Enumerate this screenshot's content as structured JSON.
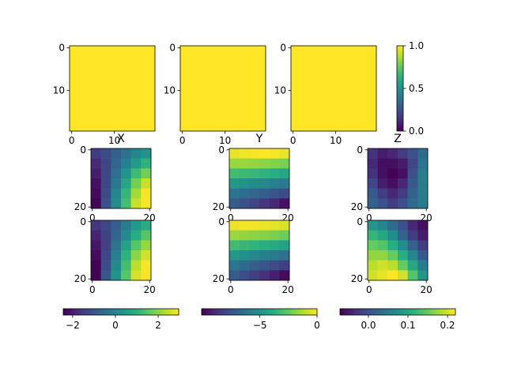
{
  "chart_data": [
    {
      "type": "heatmap",
      "values": [
        [
          1
        ]
      ],
      "clim": [
        0,
        1
      ],
      "xlim": [
        -0.5,
        19.5
      ],
      "ylim": [
        19.5,
        -0.5
      ],
      "xticks": [
        0,
        10
      ],
      "yticks": [
        0,
        10
      ]
    },
    {
      "type": "heatmap",
      "values": [
        [
          1
        ]
      ],
      "clim": [
        0,
        1
      ],
      "xlim": [
        -0.5,
        19.5
      ],
      "ylim": [
        19.5,
        -0.5
      ],
      "xticks": [
        0,
        10
      ],
      "yticks": [
        0,
        10
      ]
    },
    {
      "type": "heatmap",
      "values": [
        [
          1
        ]
      ],
      "clim": [
        0,
        1
      ],
      "xlim": [
        -0.5,
        19.5
      ],
      "ylim": [
        19.5,
        -0.5
      ],
      "xticks": [
        0,
        10
      ],
      "yticks": [
        0,
        10
      ]
    },
    {
      "type": "heatmap",
      "title": "X",
      "clim": [
        -2.44,
        2.96
      ],
      "xlim": [
        -0.5,
        20.5
      ],
      "ylim": [
        20.5,
        -0.5
      ],
      "xticks": [
        0,
        20
      ],
      "yticks": [
        0,
        20
      ],
      "values": [
        [
          -1.5,
          -1.2,
          -0.8,
          -0.4,
          0,
          0.3
        ],
        [
          -1.8,
          -1.3,
          -0.7,
          -0.1,
          0.5,
          1.0
        ],
        [
          -2,
          -1.3,
          -0.5,
          0.3,
          1.2,
          1.8
        ],
        [
          -2.2,
          -1.3,
          -0.3,
          0.7,
          1.8,
          2.5
        ],
        [
          -2.3,
          -1.2,
          0,
          1.1,
          2.2,
          2.9
        ],
        [
          -2.4,
          -1.1,
          0.1,
          1.3,
          2.5,
          2.9
        ]
      ]
    },
    {
      "type": "heatmap",
      "title": "Y",
      "clim": [
        -10.1,
        0
      ],
      "xlim": [
        -0.5,
        20.5
      ],
      "ylim": [
        20.5,
        -0.5
      ],
      "xticks": [
        0,
        20
      ],
      "yticks": [
        0,
        20
      ],
      "values": [
        [
          -0.3,
          -0.2,
          -0.1,
          0,
          -0.1,
          -0.3
        ],
        [
          -1.6,
          -1.6,
          -1.7,
          -1.8,
          -1.9,
          -2.1
        ],
        [
          -3.2,
          -3.3,
          -3.4,
          -3.6,
          -3.8,
          -4.1
        ],
        [
          -4.8,
          -5,
          -5.2,
          -5.4,
          -5.7,
          -6
        ],
        [
          -6.2,
          -6.5,
          -6.8,
          -7.1,
          -7.4,
          -7.8
        ],
        [
          -7.2,
          -7.6,
          -8,
          -8.5,
          -9,
          -9.6
        ]
      ]
    },
    {
      "type": "heatmap",
      "title": "Z",
      "clim": [
        -0.072,
        0.22
      ],
      "xlim": [
        -0.5,
        20.5
      ],
      "ylim": [
        20.5,
        -0.5
      ],
      "xticks": [
        0,
        20
      ],
      "yticks": [
        0,
        20
      ],
      "values": [
        [
          -0.03,
          -0.05,
          -0.04,
          -0.02,
          0,
          0.03
        ],
        [
          -0.04,
          -0.06,
          -0.06,
          -0.05,
          -0.01,
          0.04
        ],
        [
          -0.03,
          -0.06,
          -0.07,
          -0.06,
          0,
          0.05
        ],
        [
          -0.01,
          -0.05,
          -0.06,
          -0.04,
          0.01,
          0.05
        ],
        [
          0.01,
          -0.02,
          -0.04,
          -0.02,
          0.02,
          0.05
        ],
        [
          0.02,
          0,
          -0.02,
          0,
          0.03,
          0.05
        ]
      ]
    },
    {
      "type": "heatmap",
      "clim": [
        -2.44,
        2.96
      ],
      "xlim": [
        -0.5,
        20.5
      ],
      "ylim": [
        20.5,
        -0.5
      ],
      "xticks": [
        0,
        20
      ],
      "yticks": [
        0,
        20
      ],
      "values": [
        [
          -1.6,
          -1.3,
          -0.8,
          -0.2,
          0.4,
          0.9
        ],
        [
          -1.9,
          -1.4,
          -0.7,
          0.1,
          0.9,
          1.5
        ],
        [
          -2.1,
          -1.4,
          -0.4,
          0.6,
          1.5,
          2.1
        ],
        [
          -2.3,
          -1.3,
          -0.1,
          1,
          2,
          2.6
        ],
        [
          -2.4,
          -1.2,
          0.1,
          1.3,
          2.4,
          2.9
        ],
        [
          -2.4,
          -1,
          0.3,
          1.5,
          2.6,
          2.9
        ]
      ]
    },
    {
      "type": "heatmap",
      "clim": [
        -10.1,
        0
      ],
      "xlim": [
        -0.5,
        20.5
      ],
      "ylim": [
        20.5,
        -0.5
      ],
      "xticks": [
        0,
        20
      ],
      "yticks": [
        0,
        20
      ],
      "values": [
        [
          -0.3,
          -0.2,
          -0.2,
          -0.3,
          -0.4,
          -0.6
        ],
        [
          -1.6,
          -1.7,
          -1.8,
          -1.9,
          -2.1,
          -2.3
        ],
        [
          -3.2,
          -3.4,
          -3.6,
          -3.8,
          -4,
          -4.3
        ],
        [
          -4.8,
          -5.1,
          -5.4,
          -5.7,
          -6,
          -6.3
        ],
        [
          -6.2,
          -6.6,
          -7,
          -7.4,
          -7.8,
          -8.2
        ],
        [
          -7.2,
          -7.7,
          -8.2,
          -8.7,
          -9.2,
          -9.8
        ]
      ]
    },
    {
      "type": "heatmap",
      "clim": [
        -0.072,
        0.22
      ],
      "xlim": [
        -0.5,
        20.5
      ],
      "ylim": [
        20.5,
        -0.5
      ],
      "xticks": [
        0,
        20
      ],
      "yticks": [
        0,
        20
      ],
      "values": [
        [
          0.08,
          0.06,
          0.03,
          0,
          -0.04,
          -0.06
        ],
        [
          0.12,
          0.1,
          0.07,
          0.02,
          -0.02,
          -0.05
        ],
        [
          0.15,
          0.14,
          0.11,
          0.07,
          0.02,
          -0.02
        ],
        [
          0.17,
          0.17,
          0.15,
          0.11,
          0.06,
          0.01
        ],
        [
          0.19,
          0.2,
          0.19,
          0.15,
          0.1,
          0.05
        ],
        [
          0.2,
          0.21,
          0.22,
          0.2,
          0.14,
          0.08
        ]
      ]
    },
    {
      "type": "colorbar",
      "orientation": "vertical",
      "clim": [
        0,
        1
      ],
      "ticks": [
        {
          "value": 0,
          "label": "0.0"
        },
        {
          "value": 0.5,
          "label": "0.5"
        },
        {
          "value": 1,
          "label": "1.0"
        }
      ]
    },
    {
      "type": "colorbar",
      "orientation": "horizontal",
      "clim": [
        -2.44,
        2.96
      ],
      "ticks": [
        {
          "value": -2,
          "label": "−2"
        },
        0,
        2
      ]
    },
    {
      "type": "colorbar",
      "orientation": "horizontal",
      "clim": [
        -10.1,
        0
      ],
      "ticks": [
        {
          "value": -5,
          "label": "−5"
        },
        0
      ]
    },
    {
      "type": "colorbar",
      "orientation": "horizontal",
      "clim": [
        -0.072,
        0.22
      ],
      "ticks": [
        {
          "value": 0,
          "label": "0.0"
        },
        {
          "value": 0.1,
          "label": "0.1"
        },
        {
          "value": 0.2,
          "label": "0.2"
        }
      ]
    }
  ]
}
